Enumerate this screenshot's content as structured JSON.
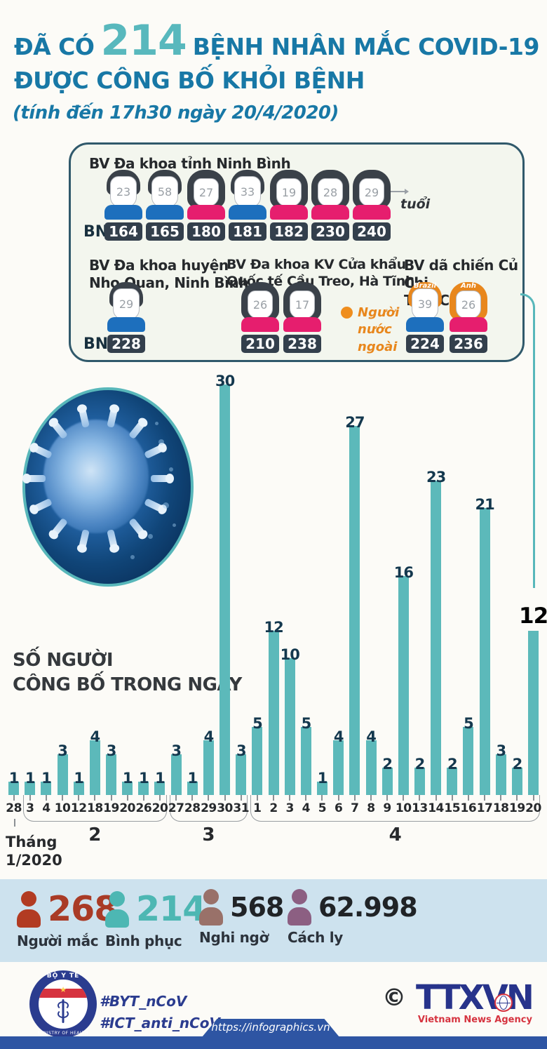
{
  "header": {
    "title_prefix": "ĐÃ CÓ",
    "title_number": "214",
    "title_suffix": "BỆNH NHÂN MẮC COVID-19",
    "title_line2": "ĐƯỢC CÔNG BỐ KHỎI BỆNH",
    "subtitle": "(tính đến 17h30 ngày 20/4/2020)"
  },
  "panel": {
    "bn_label": "BN",
    "age_note": "tuổi",
    "foreign_legend": "Người\nnước\nngoài",
    "groups": [
      {
        "name": "BV Đa khoa tỉnh Ninh Bình",
        "patients": [
          {
            "bn": "164",
            "age": "23",
            "gender": "male"
          },
          {
            "bn": "165",
            "age": "58",
            "gender": "male"
          },
          {
            "bn": "180",
            "age": "27",
            "gender": "female"
          },
          {
            "bn": "181",
            "age": "33",
            "gender": "male"
          },
          {
            "bn": "182",
            "age": "19",
            "gender": "female"
          },
          {
            "bn": "230",
            "age": "28",
            "gender": "female"
          },
          {
            "bn": "240",
            "age": "29",
            "gender": "female"
          }
        ]
      },
      {
        "name": "BV Đa khoa huyện\nNho Quan, Ninh Bình",
        "patients": [
          {
            "bn": "228",
            "age": "29",
            "gender": "male"
          }
        ]
      },
      {
        "name": "BV Đa khoa KV Cửa khẩu\nQuốc tế Cầu Treo, Hà Tĩnh",
        "patients": [
          {
            "bn": "210",
            "age": "26",
            "gender": "female"
          },
          {
            "bn": "238",
            "age": "17",
            "gender": "female"
          }
        ]
      },
      {
        "name": "BV dã chiến Củ Chi,\nTP HCM",
        "patients": [
          {
            "bn": "224",
            "age": "39",
            "gender": "male",
            "foreign": true,
            "nationality": "Brazil"
          },
          {
            "bn": "236",
            "age": "26",
            "gender": "female",
            "foreign": true,
            "nationality": "Anh"
          }
        ]
      }
    ]
  },
  "chart_data": {
    "type": "bar",
    "title": "SỐ NGƯỜI\nCÔNG BỐ TRONG NGÀY",
    "bar_color": "#5cb9ba",
    "highlight_last_value": true,
    "groups": [
      {
        "month_label": "Tháng\n1/2020",
        "days": [
          "28"
        ],
        "values": [
          1
        ]
      },
      {
        "month_label": "2",
        "days": [
          "3",
          "4",
          "10",
          "12",
          "18",
          "19",
          "20",
          "26",
          "20"
        ],
        "values": [
          1,
          1,
          3,
          1,
          4,
          3,
          1,
          1,
          1
        ]
      },
      {
        "month_label": "3",
        "days": [
          "27",
          "28",
          "29",
          "30",
          "31"
        ],
        "values": [
          3,
          1,
          4,
          30,
          3
        ]
      },
      {
        "month_label": "4",
        "days": [
          "1",
          "2",
          "3",
          "4",
          "5",
          "6",
          "7",
          "8",
          "9",
          "10",
          "13",
          "14",
          "15",
          "16",
          "17",
          "18",
          "19",
          "20"
        ],
        "values": [
          5,
          12,
          10,
          5,
          1,
          4,
          27,
          4,
          2,
          16,
          2,
          23,
          2,
          5,
          21,
          3,
          2,
          12
        ]
      }
    ]
  },
  "stats": [
    {
      "value": "268",
      "label": "Người mắc",
      "icon_color": "#b23b22",
      "value_color": "#a93b26",
      "emphasis": true
    },
    {
      "value": "214",
      "label": "Bình phục",
      "icon_color": "#4db7b3",
      "value_color": "#4db7b3",
      "emphasis": true
    },
    {
      "value": "568",
      "label": "Nghi ngờ",
      "icon_color": "#997169",
      "value_color": "#202326",
      "emphasis": false
    },
    {
      "value": "62.998",
      "label": "Cách ly",
      "icon_color": "#8c5f82",
      "value_color": "#202326",
      "emphasis": false
    }
  ],
  "footer": {
    "moh_top": "BỘ Y TẾ",
    "moh_bottom": "MINISTRY OF HEALTH",
    "hashtags": [
      "#BYT_nCoV",
      "#ICT_anti_nCoV"
    ],
    "copyright": "©",
    "agency": "TTXVN",
    "agency_sub": "Vietnam News Agency",
    "url": "https://infographics.vn"
  },
  "colors": {
    "title_blue": "#1878a6",
    "accent_teal": "#58b8bd",
    "male_shirt": "#1d6fbd",
    "female_shirt": "#e61e6e",
    "foreign_hair": "#e8871d",
    "stats_band_bg": "#cde2ee",
    "footer_bar_blue": "#2e55a3"
  }
}
